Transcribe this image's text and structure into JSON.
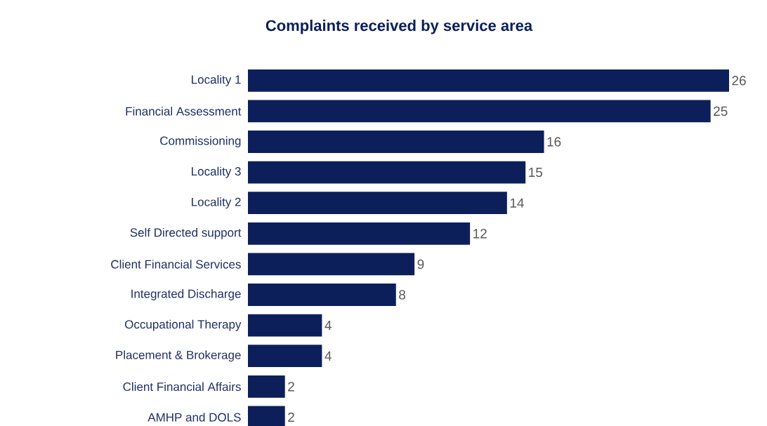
{
  "chart_data": {
    "type": "bar",
    "orientation": "horizontal",
    "title": "Complaints received by service area",
    "categories": [
      "Locality 1",
      "Financial Assessment",
      "Commissioning",
      "Locality 3",
      "Locality 2",
      "Self Directed support",
      "Client Financial Services",
      "Integrated Discharge",
      "Occupational Therapy",
      "Placement & Brokerage",
      "Client Financial Affairs",
      "AMHP and DOLS"
    ],
    "values": [
      26,
      25,
      16,
      15,
      14,
      12,
      9,
      8,
      4,
      4,
      2,
      2
    ],
    "color": "#0c1f5b",
    "data_labels": true
  }
}
